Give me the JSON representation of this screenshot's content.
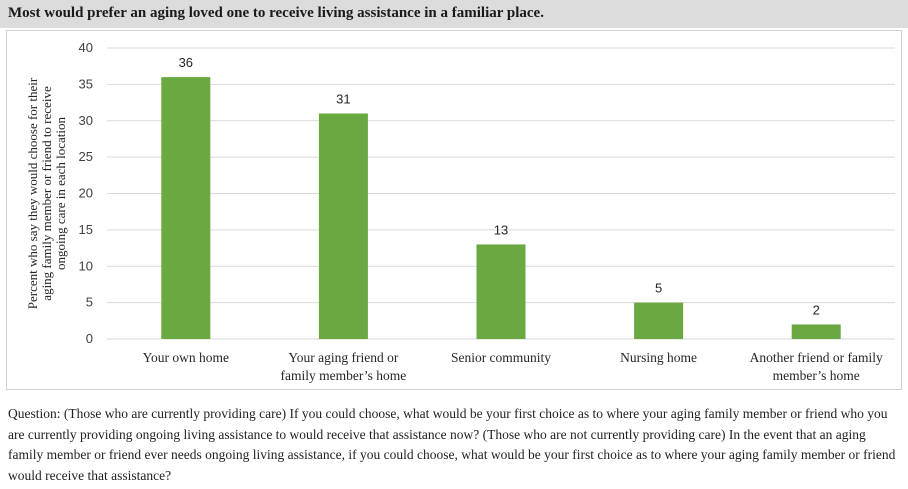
{
  "title": "Most would prefer an aging loved one to receive living assistance in a familiar place.",
  "question": "Question: (Those who are currently providing care) If you could choose, what would be your first choice as to where your aging family member or friend who you are currently providing ongoing living assistance to would receive that assistance now? (Those who are not currently providing care) In the event that an aging family member or friend ever needs ongoing living assistance, if you could choose, what would be your first choice as to where your aging family member or friend would receive that assistance?",
  "colors": {
    "bar": "#6aa842",
    "grid": "#d9d9d9",
    "title_bg": "#dcdcdc"
  },
  "chart_data": {
    "type": "bar",
    "title": "Most would prefer an aging loved one to receive living assistance in a familiar place.",
    "ylabel_lines": [
      "Percent who say they would choose for their",
      "aging family member or friend to receive",
      "ongoing care in each location"
    ],
    "xlabel": "",
    "categories": [
      [
        "Your own home"
      ],
      [
        "Your aging friend or",
        "family member’s home"
      ],
      [
        "Senior community"
      ],
      [
        "Nursing home"
      ],
      [
        "Another friend or family",
        "member’s home"
      ]
    ],
    "values": [
      36,
      31,
      13,
      5,
      2
    ],
    "data_labels": [
      "36",
      "31",
      "13",
      "5",
      "2"
    ],
    "ylim": [
      0,
      40
    ],
    "yticks": [
      0,
      5,
      10,
      15,
      20,
      25,
      30,
      35,
      40
    ],
    "grid": true,
    "legend": "none"
  }
}
